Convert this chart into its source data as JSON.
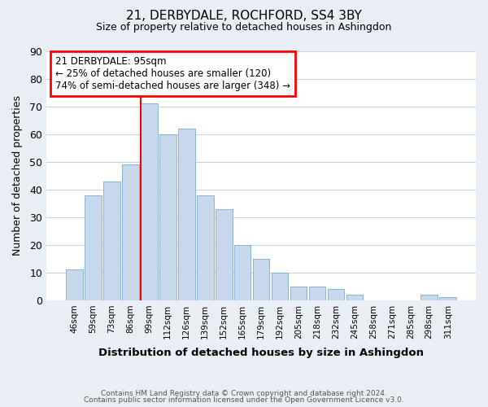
{
  "title1": "21, DERBYDALE, ROCHFORD, SS4 3BY",
  "title2": "Size of property relative to detached houses in Ashingdon",
  "xlabel": "Distribution of detached houses by size in Ashingdon",
  "ylabel": "Number of detached properties",
  "bar_labels": [
    "46sqm",
    "59sqm",
    "73sqm",
    "86sqm",
    "99sqm",
    "112sqm",
    "126sqm",
    "139sqm",
    "152sqm",
    "165sqm",
    "179sqm",
    "192sqm",
    "205sqm",
    "218sqm",
    "232sqm",
    "245sqm",
    "258sqm",
    "271sqm",
    "285sqm",
    "298sqm",
    "311sqm"
  ],
  "bar_values": [
    11,
    38,
    43,
    49,
    71,
    60,
    62,
    38,
    33,
    20,
    15,
    10,
    5,
    5,
    4,
    2,
    0,
    0,
    0,
    2,
    1
  ],
  "bar_color": "#c8d8ec",
  "bar_edge_color": "#8ab4d4",
  "redline_index": 4,
  "annotation_title": "21 DERBYDALE: 95sqm",
  "annotation_line1": "← 25% of detached houses are smaller (120)",
  "annotation_line2": "74% of semi-detached houses are larger (348) →",
  "ylim": [
    0,
    90
  ],
  "yticks": [
    0,
    10,
    20,
    30,
    40,
    50,
    60,
    70,
    80,
    90
  ],
  "footer1": "Contains HM Land Registry data © Crown copyright and database right 2024.",
  "footer2": "Contains public sector information licensed under the Open Government Licence v3.0.",
  "fig_bg_color": "#e8eef4",
  "plot_bg_color": "#ffffff",
  "grid_color": "#c8d4e0"
}
